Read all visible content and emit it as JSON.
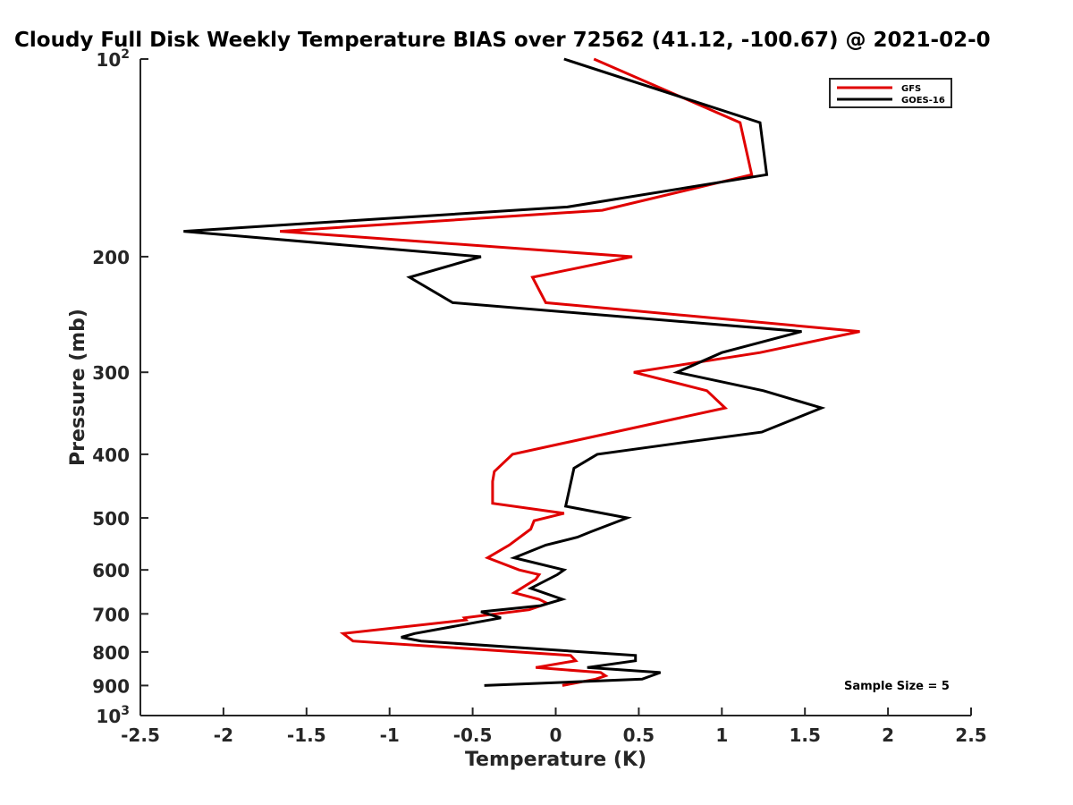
{
  "chart_data": {
    "type": "line",
    "title": "Cloudy Full Disk Weekly Temperature BIAS over 72562 (41.12, -100.67) @ 2021-02-0",
    "xlabel": "Temperature (K)",
    "ylabel": "Pressure (mb)",
    "xlim": [
      -2.5,
      2.5
    ],
    "ylim": [
      100,
      1000
    ],
    "y_scale": "log",
    "y_reversed": true,
    "grid": false,
    "legend_position": "top-right",
    "x_ticks": [
      "-2.5",
      "-2",
      "-1.5",
      "-1",
      "-0.5",
      "0",
      "0.5",
      "1",
      "1.5",
      "2",
      "2.5"
    ],
    "x_tick_values": [
      -2.5,
      -2,
      -1.5,
      -1,
      -0.5,
      0,
      0.5,
      1,
      1.5,
      2,
      2.5
    ],
    "y_ticks": [
      {
        "value": 100,
        "label": "10",
        "sup": "2"
      },
      {
        "value": 200,
        "label": "200"
      },
      {
        "value": 300,
        "label": "300"
      },
      {
        "value": 400,
        "label": "400"
      },
      {
        "value": 500,
        "label": "500"
      },
      {
        "value": 600,
        "label": "600"
      },
      {
        "value": 700,
        "label": "700"
      },
      {
        "value": 800,
        "label": "800"
      },
      {
        "value": 900,
        "label": "900"
      },
      {
        "value": 1000,
        "label": "10",
        "sup": "3"
      }
    ],
    "annotation": "Sample Size = 5",
    "series": [
      {
        "name": "GFS",
        "color": "#e00000",
        "points": [
          [
            0.23,
            100
          ],
          [
            1.11,
            125
          ],
          [
            1.18,
            150
          ],
          [
            0.28,
            170
          ],
          [
            -1.66,
            183
          ],
          [
            0.46,
            200
          ],
          [
            -0.14,
            215
          ],
          [
            -0.06,
            235
          ],
          [
            1.83,
            260
          ],
          [
            1.23,
            280
          ],
          [
            0.47,
            300
          ],
          [
            0.91,
            320
          ],
          [
            1.02,
            340
          ],
          [
            -0.26,
            400
          ],
          [
            -0.37,
            425
          ],
          [
            -0.38,
            440
          ],
          [
            -0.38,
            475
          ],
          [
            0.05,
            492
          ],
          [
            -0.13,
            505
          ],
          [
            -0.15,
            520
          ],
          [
            -0.28,
            550
          ],
          [
            -0.41,
            575
          ],
          [
            -0.22,
            600
          ],
          [
            -0.1,
            610
          ],
          [
            -0.12,
            620
          ],
          [
            -0.25,
            650
          ],
          [
            -0.1,
            665
          ],
          [
            -0.05,
            675
          ],
          [
            -0.16,
            690
          ],
          [
            -0.55,
            710
          ],
          [
            -0.54,
            715
          ],
          [
            -1.28,
            750
          ],
          [
            -1.22,
            770
          ],
          [
            0.09,
            810
          ],
          [
            0.12,
            825
          ],
          [
            -0.12,
            845
          ],
          [
            0.27,
            860
          ],
          [
            0.3,
            870
          ],
          [
            0.24,
            880
          ],
          [
            0.04,
            900
          ]
        ]
      },
      {
        "name": "GOES-16",
        "color": "#000000",
        "points": [
          [
            0.05,
            100
          ],
          [
            1.23,
            125
          ],
          [
            1.27,
            150
          ],
          [
            0.07,
            168
          ],
          [
            -2.24,
            183
          ],
          [
            -0.45,
            200
          ],
          [
            -0.88,
            215
          ],
          [
            -0.62,
            235
          ],
          [
            1.48,
            260
          ],
          [
            1.0,
            280
          ],
          [
            0.73,
            300
          ],
          [
            1.25,
            320
          ],
          [
            1.6,
            340
          ],
          [
            1.24,
            370
          ],
          [
            0.73,
            385
          ],
          [
            0.25,
            400
          ],
          [
            0.11,
            420
          ],
          [
            0.06,
            480
          ],
          [
            0.43,
            500
          ],
          [
            0.21,
            525
          ],
          [
            0.13,
            535
          ],
          [
            -0.06,
            550
          ],
          [
            -0.25,
            575
          ],
          [
            0.05,
            600
          ],
          [
            0.01,
            610
          ],
          [
            -0.15,
            640
          ],
          [
            0.04,
            665
          ],
          [
            -0.09,
            680
          ],
          [
            -0.45,
            695
          ],
          [
            -0.33,
            710
          ],
          [
            -0.85,
            750
          ],
          [
            -0.93,
            760
          ],
          [
            -0.81,
            770
          ],
          [
            0.48,
            810
          ],
          [
            0.48,
            825
          ],
          [
            0.19,
            845
          ],
          [
            0.63,
            860
          ],
          [
            0.52,
            880
          ],
          [
            -0.43,
            900
          ]
        ]
      }
    ]
  }
}
